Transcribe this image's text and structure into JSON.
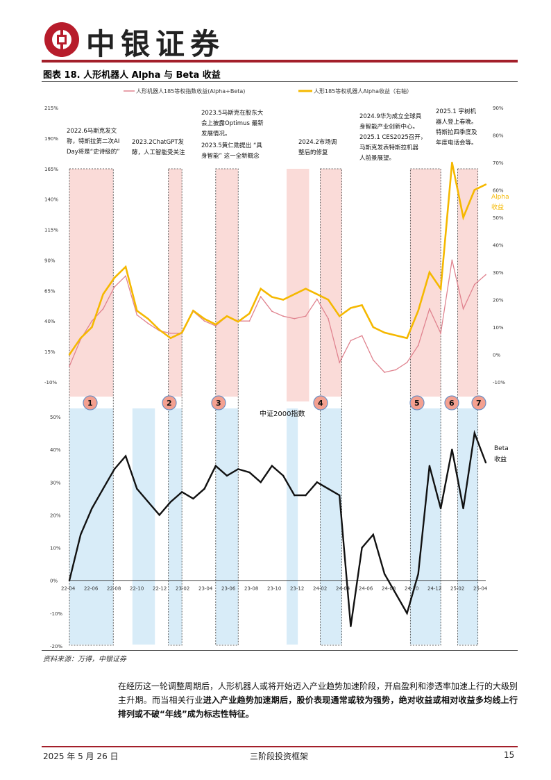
{
  "header": {
    "brand": "中银证券"
  },
  "figure": {
    "title": "图表 18. 人形机器人 Alpha 与 Beta 收益"
  },
  "source": "资料来源：万得，中银证券",
  "body_text": {
    "part1": "在经历这一轮调整周期后，人形机器人或将开始迈入产业趋势加速阶段，开启盈利和渗透率加速上行的大级别主升期。而当相关行业",
    "part2": "进入产业趋势加速期后，股价表现通常或较为强势，绝对收益或相对收益多均线上行排列或不破“年线”成为标志性特征。"
  },
  "footer": {
    "date": "2025 年 5 月 26 日",
    "title": "三阶段投资框架",
    "page": "15"
  },
  "colors": {
    "pink_line": "#e0838f",
    "gold_line": "#f5b800",
    "black_line": "#111111",
    "pink_band": "#fadbd8",
    "blue_band": "#d8ecf8",
    "brand_red": "#a31f2a"
  },
  "chart_data": [
    {
      "type": "line",
      "title": "人形机器人 Alpha 与 Beta 收益（上图）",
      "legend": [
        "人形机器人185等权指数收益(Alpha+Beta)",
        "人形185等权机器人Alpha收益（右轴）"
      ],
      "left_axis": {
        "ticks": [
          "215%",
          "190%",
          "165%",
          "140%",
          "115%",
          "90%",
          "65%",
          "40%",
          "15%",
          "-10%"
        ],
        "ylim": [
          -10,
          215
        ]
      },
      "right_axis": {
        "ticks": [
          "90%",
          "80%",
          "70%",
          "60%",
          "50%",
          "40%",
          "30%",
          "20%",
          "10%",
          "0%",
          "-10%"
        ],
        "ylim": [
          -10,
          90
        ],
        "label": "Alpha 收益"
      },
      "x_months": [
        0,
        1,
        2,
        3,
        4,
        5,
        6,
        7,
        8,
        9,
        10,
        11,
        12,
        13,
        14,
        15,
        16,
        17,
        18,
        19,
        20,
        21,
        22,
        23,
        24,
        25,
        26,
        27,
        28,
        29,
        30,
        31,
        32,
        33,
        34,
        35,
        36,
        37
      ],
      "series": [
        {
          "name": "人形机器人185等权指数收益(Alpha+Beta)",
          "values": [
            3,
            25,
            40,
            50,
            68,
            77,
            45,
            38,
            32,
            30,
            30,
            48,
            40,
            36,
            44,
            40,
            40,
            60,
            48,
            44,
            42,
            44,
            58,
            42,
            6,
            24,
            28,
            8,
            -2,
            0,
            6,
            20,
            50,
            30,
            90,
            50,
            70,
            78
          ]
        },
        {
          "name": "人形185等权机器人Alpha收益（右轴）",
          "values": [
            0,
            6,
            10,
            22,
            28,
            32,
            16,
            13,
            9,
            6,
            8,
            16,
            13,
            11,
            14,
            12,
            15,
            24,
            21,
            20,
            22,
            24,
            22,
            20,
            14,
            17,
            18,
            10,
            8,
            7,
            6,
            16,
            30,
            24,
            70,
            50,
            60,
            62
          ]
        }
      ],
      "annotations": [
        "2022.6马斯克发文称，特斯拉第二次AI Day将是“史诗级的”",
        "2023.2ChatGPT发酵，人工智能受关注",
        "2023.5马斯克在股东大会上披露Optimus 最新发展情况。",
        "2023.5黄仁勋提出 “具身智能” 这一全新概念",
        "2024.2市场调整后的修复",
        "2024.9华为成立全球具身智能产业创新中心。2025.1 CES2025召开，马斯克发表特斯拉机器人前景展望。",
        "2025.1 宇树机器人登上春晚。特斯拉四季度及年度电话会等。"
      ],
      "phase_labels": [
        "1",
        "2",
        "3",
        "4",
        "5",
        "6",
        "7"
      ]
    },
    {
      "type": "line",
      "title": "Beta 收益（下图）",
      "series_label": "中证2000指数",
      "right_label": "Beta 收益",
      "y_axis": {
        "ticks": [
          "50%",
          "40%",
          "30%",
          "20%",
          "10%",
          "0%",
          "-10%",
          "-20%"
        ],
        "ylim": [
          -20,
          50
        ]
      },
      "x_ticks": [
        "22-04",
        "22-06",
        "22-08",
        "22-10",
        "22-12",
        "23-02",
        "23-04",
        "23-06",
        "23-08",
        "23-10",
        "23-12",
        "24-02",
        "24-04",
        "24-06",
        "24-08",
        "24-10",
        "24-12",
        "25-02",
        "25-04"
      ],
      "x_months": [
        0,
        1,
        2,
        3,
        4,
        5,
        6,
        7,
        8,
        9,
        10,
        11,
        12,
        13,
        14,
        15,
        16,
        17,
        18,
        19,
        20,
        21,
        22,
        23,
        24,
        25,
        26,
        27,
        28,
        29,
        30,
        31,
        32,
        33,
        34,
        35,
        36,
        37
      ],
      "series": [
        {
          "name": "中证2000指数",
          "values": [
            0,
            14,
            22,
            28,
            34,
            38,
            28,
            24,
            20,
            24,
            27,
            25,
            28,
            35,
            32,
            34,
            33,
            30,
            35,
            32,
            26,
            26,
            30,
            28,
            26,
            -14,
            10,
            14,
            2,
            -4,
            -10,
            2,
            35,
            22,
            40,
            22,
            45,
            36
          ]
        }
      ]
    }
  ]
}
